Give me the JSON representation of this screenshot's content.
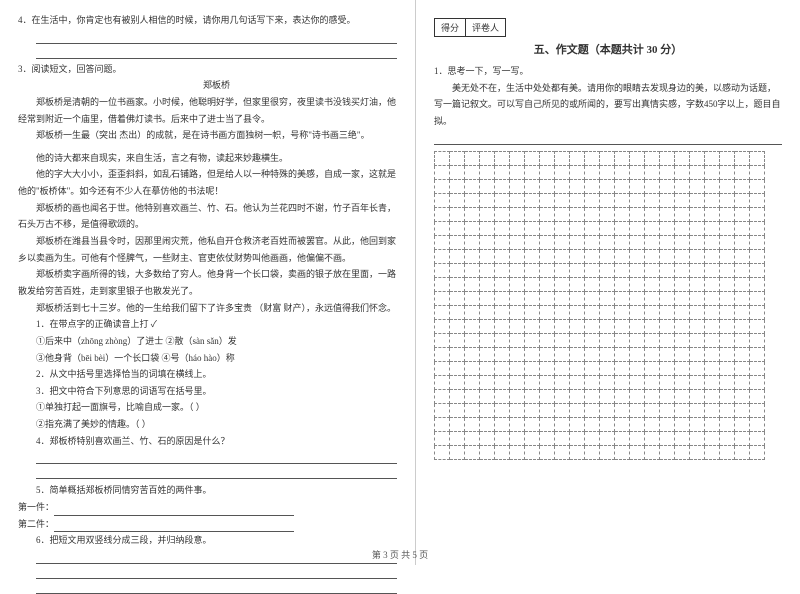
{
  "left": {
    "q4": "4．在生活中，你肯定也有被别人相信的时候，请你用几句话写下来，表达你的感受。",
    "q3_head": "3．阅读短文，回答问题。",
    "title_person": "郑板桥",
    "p1": "郑板桥是清朝的一位书画家。小时候，他聪明好学，但家里很穷，夜里读书没钱买灯油，他经常到附近一个庙里，借着佛灯读书。后来中了进士当了县令。",
    "p2": "郑板桥一生最（突出  杰出）的成就，是在诗书画方面独树一帜，号称\"诗书画三绝\"。",
    "p3": "他的诗大都来自现实，来自生活，言之有物，读起来妙趣横生。",
    "p4": "他的字大大小小，歪歪斜斜，如乱石铺路，但是给人以一种特殊的美感，自成一家，这就是他的\"板桥体\"。如今还有不少人在摹仿他的书法呢！",
    "p5": "郑板桥的画也闻名于世。他特别喜欢画兰、竹、石。他认为兰花四时不谢，竹子百年长青，石头万古不移，是值得歌颂的。",
    "p6": "郑板桥在潍县当县令时，因那里闹灾荒，他私自开仓救济老百姓而被罢官。从此，他回到家乡以卖画为生。可他有个怪脾气，一些财主、官吏依仗财势叫他画画，他偏偏不画。",
    "p7": "郑板桥卖字画所得的钱，大多数给了穷人。他身背一个长口袋，卖画的银子放在里面，一路散发给穷苦百姓，走到家里银子也散发光了。",
    "p8": "郑板桥活到七十三岁。他的一生给我们留下了许多宝贵        （财富  财产），永远值得我们怀念。",
    "sub1": "1．在带点字的正确读音上打 ✓",
    "sub1a": "①后来中（zhōng  zhòng）了进士        ②散（sàn  sǎn）发",
    "sub1b": "③他身背（bēi  bèi）一个长口袋        ④号（háo  hào）称",
    "sub2": "2．从文中括号里选择恰当的词填在横线上。",
    "sub3": "3．把文中符合下列意思的词语写在括号里。",
    "sub3a": "①单独打起一面旗号，比喻自成一家。（        ）",
    "sub3b": "②指充满了美妙的情趣。（        ）",
    "sub4": "4．郑板桥特别喜欢画兰、竹、石的原因是什么？",
    "sub5": "5．简单概括郑板桥同情穷苦百姓的两件事。",
    "sub5a": "第一件：",
    "sub5b": "第二件：",
    "sub6": "6．把短文用双竖线分成三段，并归纳段意。"
  },
  "right": {
    "score_label": "得分",
    "grader_label": "评卷人",
    "section": "五、作文题（本题共计 30 分）",
    "q1": "1．思考一下，写一写。",
    "q1body": "美无处不在，生活中处处都有美。请用你的眼睛去发现身边的美，以感动为话题，写一篇记叙文。可以写自己所见的或所闻的，要写出真情实感，字数450字以上，题目自拟。"
  },
  "grid": {
    "rows": 22,
    "cols": 22
  },
  "footer": "第 3 页  共 5 页",
  "colors": {
    "text": "#333333",
    "border": "#888888",
    "bg": "#ffffff"
  }
}
